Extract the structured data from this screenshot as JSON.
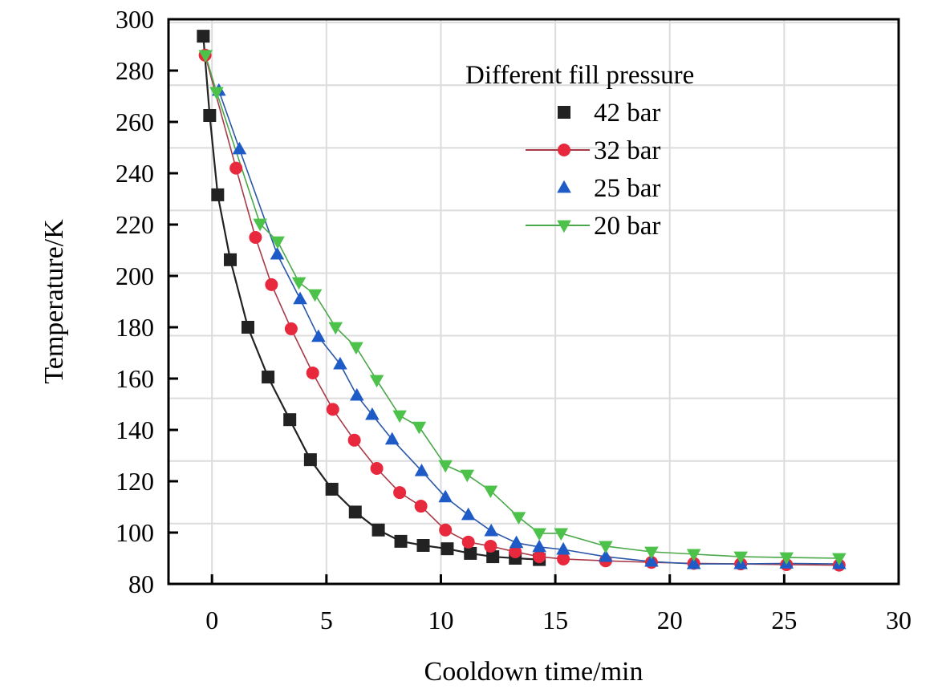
{
  "chart_data": {
    "type": "scatter",
    "title": "",
    "xlabel": "Cooldown time/min",
    "ylabel": "Temperature/K",
    "xlim": [
      -1.9,
      30
    ],
    "ylim": [
      80,
      300
    ],
    "xticks": [
      0,
      5,
      10,
      15,
      20,
      25,
      30
    ],
    "yticks": [
      80,
      100,
      120,
      140,
      160,
      180,
      200,
      220,
      240,
      260,
      280,
      300
    ],
    "grid": true,
    "legend": {
      "title": "Different fill pressure",
      "placement": "top-right"
    },
    "series": [
      {
        "name": "42 bar",
        "marker": "square",
        "color": "#222222",
        "line_color": "#222222",
        "legend_line": false,
        "x": [
          -0.38,
          -0.1,
          0.25,
          0.8,
          1.57,
          2.45,
          3.4,
          4.3,
          5.24,
          6.26,
          7.27,
          8.25,
          9.23,
          10.28,
          11.29,
          12.27,
          13.25,
          14.3
        ],
        "y": [
          293.4,
          262.5,
          231.6,
          206.3,
          180,
          160.6,
          144,
          128.4,
          116.9,
          108,
          101,
          96.6,
          95,
          93.7,
          91.9,
          90.6,
          90,
          89.5
        ]
      },
      {
        "name": "32 bar",
        "marker": "circle",
        "color": "#e8283c",
        "line_color": "#a83a48",
        "legend_line": true,
        "x": [
          -0.3,
          1.05,
          1.9,
          2.6,
          3.46,
          4.4,
          5.28,
          6.22,
          7.2,
          8.2,
          9.13,
          10.2,
          11.2,
          12.17,
          13.25,
          14.3,
          15.35,
          17.2,
          19.2,
          21.05,
          23.1,
          25.1,
          27.4
        ],
        "y": [
          286,
          242,
          215,
          196.6,
          179.4,
          162.2,
          148,
          136,
          125,
          115.6,
          110.3,
          101,
          96.3,
          94.7,
          92.5,
          90.6,
          89.7,
          89,
          88.4,
          88,
          87.8,
          87.5,
          87.3
        ]
      },
      {
        "name": "25 bar",
        "marker": "triangle-up",
        "color": "#1f5bc7",
        "line_color": "#2a57a8",
        "legend_line": false,
        "x": [
          0.3,
          1.2,
          2.85,
          3.85,
          4.65,
          5.6,
          6.33,
          7.0,
          7.87,
          9.16,
          10.2,
          11.2,
          12.2,
          13.3,
          14.3,
          15.35,
          17.2,
          19.2,
          21.05,
          23.1,
          25.1,
          27.4
        ],
        "y": [
          272.2,
          249.4,
          208.4,
          191,
          176.3,
          165.6,
          153.4,
          145.9,
          136.3,
          124,
          113.8,
          106.9,
          100.6,
          96,
          94.4,
          93.4,
          90.6,
          88.7,
          87.8,
          87.8,
          88,
          87.8
        ]
      },
      {
        "name": "20 bar",
        "marker": "triangle-down",
        "color": "#4cc24a",
        "line_color": "#4aa84a",
        "legend_line": true,
        "x": [
          -0.28,
          0.2,
          2.1,
          2.87,
          3.8,
          4.5,
          5.4,
          6.3,
          7.2,
          8.2,
          9.05,
          10.2,
          11.15,
          12.17,
          13.4,
          14.3,
          15.25,
          17.2,
          19.2,
          21.05,
          23.1,
          25.1,
          27.4
        ],
        "y": [
          286,
          271.6,
          220.3,
          213.4,
          197.5,
          192.8,
          180,
          172.2,
          159.4,
          145.6,
          141.2,
          126.2,
          122.5,
          116.3,
          106,
          99.7,
          99.7,
          94.7,
          92.5,
          91.6,
          90.6,
          90.3,
          90
        ]
      }
    ]
  }
}
